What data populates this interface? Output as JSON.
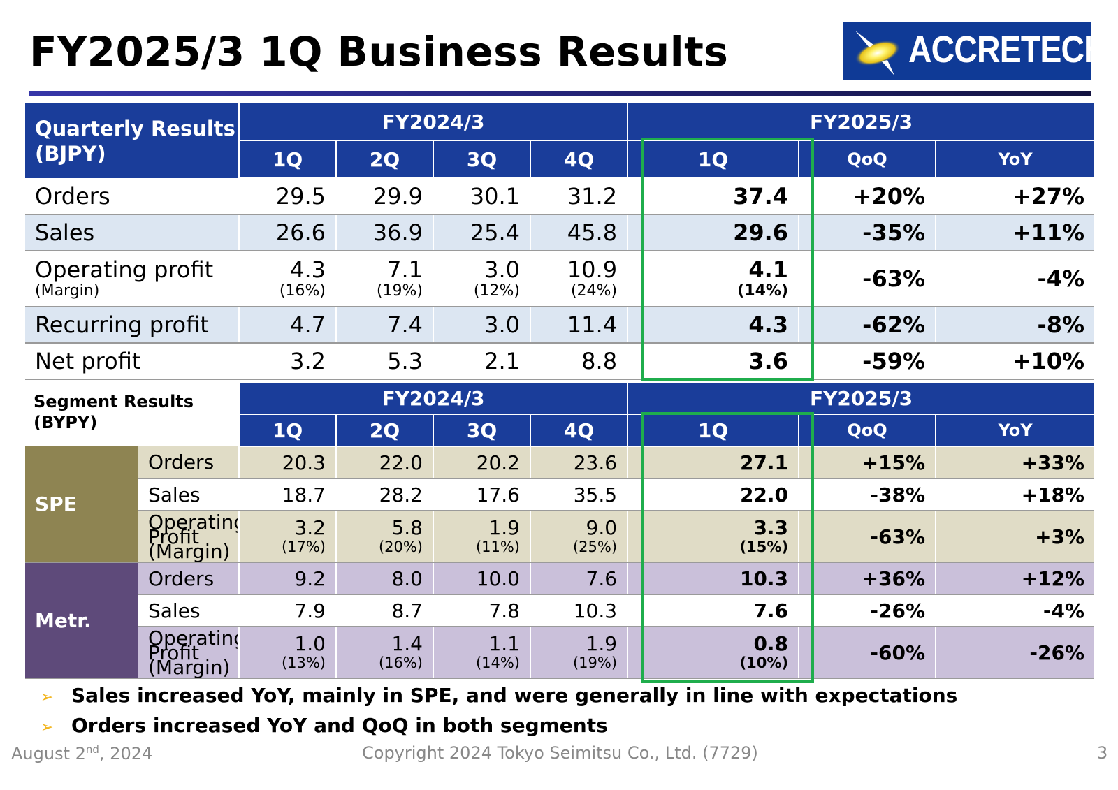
{
  "title": "FY2025/3 1Q Business Results",
  "logo": {
    "text": "ACCRETECH"
  },
  "quarterly": {
    "corner_line1": "Quarterly Results",
    "corner_line2": "(BJPY)",
    "fy_prev": "FY2024/3",
    "fy_curr": "FY2025/3",
    "cols": [
      "1Q",
      "2Q",
      "3Q",
      "4Q",
      "1Q",
      "QoQ",
      "YoY"
    ],
    "rows": [
      {
        "label": "Orders",
        "values": [
          "29.5",
          "29.9",
          "30.1",
          "31.2",
          "37.4",
          "+20%",
          "+27%"
        ]
      },
      {
        "label": "Sales",
        "values": [
          "26.6",
          "36.9",
          "25.4",
          "45.8",
          "29.6",
          "-35%",
          "+11%"
        ]
      },
      {
        "label": "Operating profit",
        "sublabel": "(Margin)",
        "values": [
          "4.3",
          "7.1",
          "3.0",
          "10.9",
          "4.1",
          "-63%",
          "-4%"
        ],
        "margins": [
          "(16%)",
          "(19%)",
          "(12%)",
          "(24%)",
          "(14%)"
        ]
      },
      {
        "label": "Recurring profit",
        "values": [
          "4.7",
          "7.4",
          "3.0",
          "11.4",
          "4.3",
          "-62%",
          "-8%"
        ]
      },
      {
        "label": "Net profit",
        "values": [
          "3.2",
          "5.3",
          "2.1",
          "8.8",
          "3.6",
          "-59%",
          "+10%"
        ]
      }
    ]
  },
  "segment": {
    "corner_line1": "Segment Results",
    "corner_line2": "(BYPY)",
    "fy_prev": "FY2024/3",
    "fy_curr": "FY2025/3",
    "cols": [
      "1Q",
      "2Q",
      "3Q",
      "4Q",
      "1Q",
      "QoQ",
      "YoY"
    ],
    "spe": {
      "name": "SPE",
      "orders": {
        "label": "Orders",
        "values": [
          "20.3",
          "22.0",
          "20.2",
          "23.6",
          "27.1",
          "+15%",
          "+33%"
        ]
      },
      "sales": {
        "label": "Sales",
        "values": [
          "18.7",
          "28.2",
          "17.6",
          "35.5",
          "22.0",
          "-38%",
          "+18%"
        ]
      },
      "op": {
        "label1": "Operating",
        "label2": "Profit",
        "label3": "(Margin)",
        "values": [
          "3.2",
          "5.8",
          "1.9",
          "9.0",
          "3.3",
          "-63%",
          "+3%"
        ],
        "margins": [
          "(17%)",
          "(20%)",
          "(11%)",
          "(25%)",
          "(15%)"
        ]
      }
    },
    "metr": {
      "name": "Metr.",
      "orders": {
        "label": "Orders",
        "values": [
          "9.2",
          "8.0",
          "10.0",
          "7.6",
          "10.3",
          "+36%",
          "+12%"
        ]
      },
      "sales": {
        "label": "Sales",
        "values": [
          "7.9",
          "8.7",
          "7.8",
          "10.3",
          "7.6",
          "-26%",
          "-4%"
        ]
      },
      "op": {
        "label1": "Operating",
        "label2": "Profit",
        "label3": "(Margin)",
        "values": [
          "1.0",
          "1.4",
          "1.1",
          "1.9",
          "0.8",
          "-60%",
          "-26%"
        ],
        "margins": [
          "(13%)",
          "(16%)",
          "(14%)",
          "(19%)",
          "(10%)"
        ]
      }
    }
  },
  "bullets": [
    "Sales increased YoY, mainly in SPE, and were generally in line with expectations",
    "Orders increased YoY and QoQ in both segments"
  ],
  "footer": {
    "date_prefix": "August 2",
    "date_sup": "nd",
    "date_suffix": ", 2024",
    "copyright": "Copyright  2024 Tokyo Seimitsu Co., Ltd. (7729)",
    "page": "3"
  },
  "colors": {
    "header_blue": "#1a3d9a",
    "row_shade_blue": "#dce6f2",
    "spe_color": "#8e8452",
    "spe_shade": "#e0dcc6",
    "metr_color": "#5e4a7a",
    "metr_shade": "#cac0da",
    "highlight_green": "#1fad4c",
    "bullet_arrow": "#f2b41a"
  }
}
